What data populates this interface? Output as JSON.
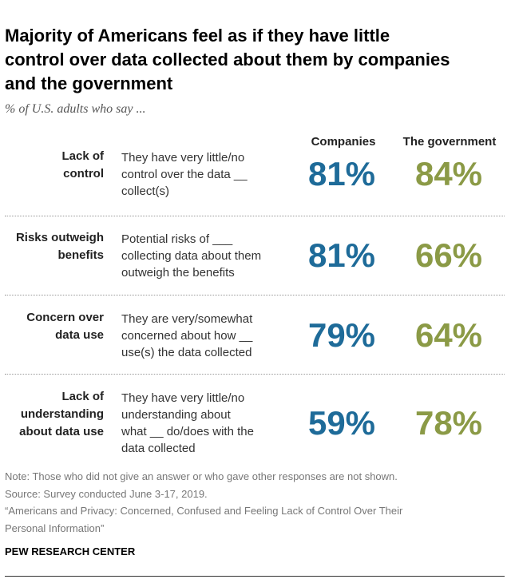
{
  "header": {
    "title": [
      "Majority of Americans feel as if they have little",
      "control over data collected about them by companies",
      "and the government"
    ],
    "subtitle": "% of U.S. adults who say ..."
  },
  "table": {
    "columns": [
      "Companies",
      "The government"
    ],
    "rows": [
      {
        "label": [
          "Lack of",
          "control"
        ],
        "description": [
          "They have very little/no",
          "control over the data __",
          "collect(s)"
        ],
        "values": [
          "81%",
          "84%"
        ]
      },
      {
        "label": [
          "Risks outweigh",
          "benefits"
        ],
        "description": [
          "Potential risks of ___",
          "collecting data about them",
          "outweigh the benefits"
        ],
        "values": [
          "81%",
          "66%"
        ]
      },
      {
        "label": [
          "Concern over",
          "data use"
        ],
        "description": [
          "They are very/somewhat",
          "concerned about how __",
          "use(s) the data collected"
        ],
        "values": [
          "79%",
          "64%"
        ]
      },
      {
        "label": [
          "Lack of",
          "understanding",
          "about data use"
        ],
        "description": [
          "They have very little/no",
          "understanding about",
          "what __ do/does with the",
          "data collected"
        ],
        "values": [
          "59%",
          "78%"
        ]
      }
    ]
  },
  "footer": {
    "notes": [
      "Note: Those who did not give an answer or who gave other responses are not shown.",
      "Source: Survey conducted June 3-17, 2019.",
      "“Americans and Privacy: Concerned, Confused and Feeling Lack of Control Over Their",
      "Personal Information”"
    ],
    "source": "PEW RESEARCH CENTER"
  }
}
